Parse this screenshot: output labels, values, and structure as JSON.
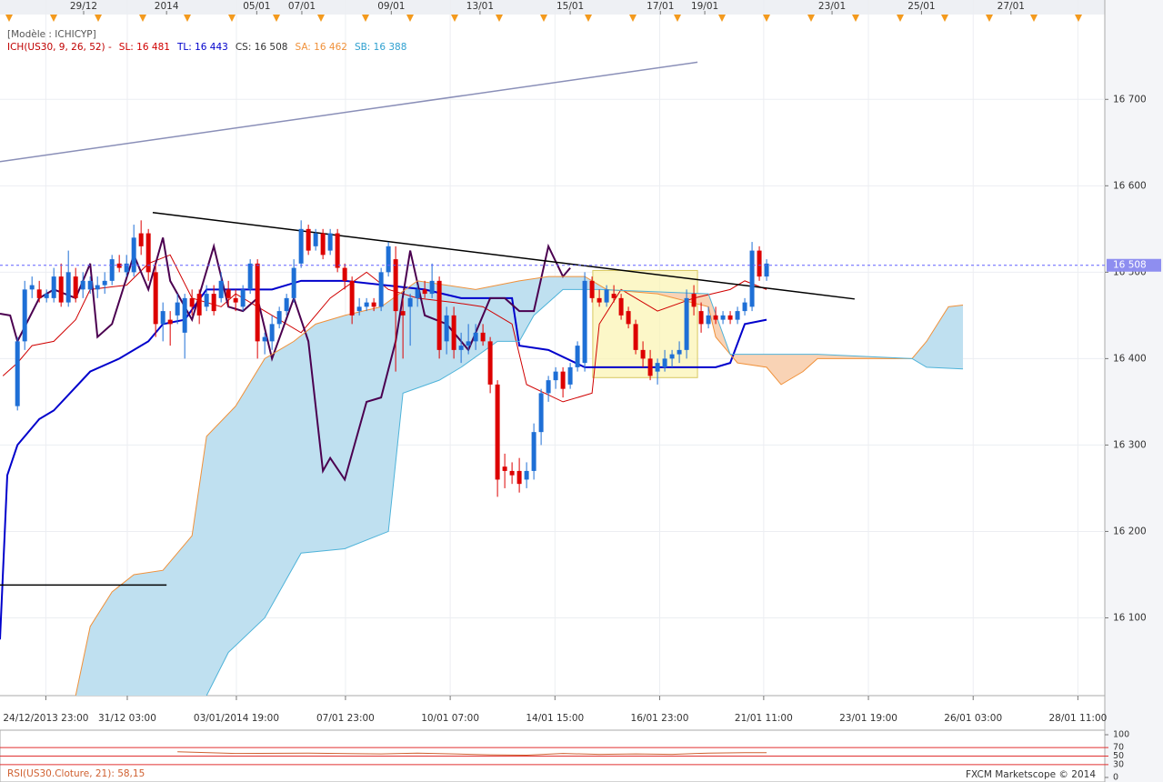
{
  "chart_data": {
    "type": "candlestick",
    "title": "[Modèle : ICHICYP]",
    "legend": [
      {
        "text": "ICH(US30, 9, 26, 52) -",
        "color": "#c00000"
      },
      {
        "text": "SL: 16 481",
        "color": "#d00000"
      },
      {
        "text": "TL: 16 443",
        "color": "#0000cc"
      },
      {
        "text": "CS: 16 508",
        "color": "#333333"
      },
      {
        "text": "SA: 16 462",
        "color": "#f0913a"
      },
      {
        "text": "SB: 16 388",
        "color": "#2fa0d0"
      }
    ],
    "up_color": "#1e6fd6",
    "down_color": "#dd0000",
    "grid": true,
    "xlim": [
      -2.4,
      149.5
    ],
    "ylim": [
      16010,
      16815
    ],
    "yticks": [
      {
        "value": 16100,
        "label": "16 100"
      },
      {
        "value": 16200,
        "label": "16 200"
      },
      {
        "value": 16300,
        "label": "16 300"
      },
      {
        "value": 16400,
        "label": "16 400"
      },
      {
        "value": 16500,
        "label": "16 500"
      },
      {
        "value": 16600,
        "label": "16 600"
      },
      {
        "value": 16700,
        "label": "16 700"
      }
    ],
    "xticks": [
      {
        "value": 3.9,
        "label": "24/12/2013 23:00"
      },
      {
        "value": 15.1,
        "label": "31/12 03:00"
      },
      {
        "value": 30.1,
        "label": "03/01/2014 19:00"
      },
      {
        "value": 45.1,
        "label": "07/01 23:00"
      },
      {
        "value": 59.5,
        "label": "10/01 07:00"
      },
      {
        "value": 73.9,
        "label": "14/01 15:00"
      },
      {
        "value": 88.3,
        "label": "16/01 23:00"
      },
      {
        "value": 102.6,
        "label": "21/01 11:00"
      },
      {
        "value": 117,
        "label": "23/01 19:00"
      },
      {
        "value": 131.4,
        "label": "26/01 03:00"
      },
      {
        "value": 145.8,
        "label": "28/01 11:00"
      }
    ],
    "x2ticks": [
      {
        "value": 9.1,
        "label": "29/12"
      },
      {
        "value": 20.5,
        "label": "2014"
      },
      {
        "value": 32.9,
        "label": "05/01"
      },
      {
        "value": 39.1,
        "label": "07/01"
      },
      {
        "value": 51.4,
        "label": "09/01"
      },
      {
        "value": 63.6,
        "label": "13/01"
      },
      {
        "value": 76,
        "label": "15/01"
      },
      {
        "value": 88.4,
        "label": "17/01"
      },
      {
        "value": 94.5,
        "label": "19/01"
      },
      {
        "value": 112,
        "label": "23/01"
      },
      {
        "value": 124.3,
        "label": "25/01"
      },
      {
        "value": 136.6,
        "label": "27/01"
      }
    ],
    "ohlc": {
      "open": [
        16345,
        16420,
        16480,
        16480,
        16470,
        16470,
        16495,
        16465,
        16495,
        16480,
        16480,
        16480,
        16485,
        16490,
        16510,
        16500,
        16500,
        16545,
        16545,
        16500,
        16440,
        16445,
        16450,
        16430,
        16470,
        16475,
        16460,
        16475,
        16470,
        16480,
        16470,
        16460,
        16480,
        16510,
        16420,
        16420,
        16440,
        16455,
        16470,
        16510,
        16550,
        16530,
        16545,
        16525,
        16545,
        16505,
        16490,
        16455,
        16460,
        16465,
        16460,
        16500,
        16515,
        16455,
        16460,
        16470,
        16480,
        16475,
        16490,
        16420,
        16450,
        16410,
        16415,
        16420,
        16430,
        16420,
        16370,
        16275,
        16270,
        16270,
        16260,
        16270,
        16315,
        16360,
        16375,
        16385,
        16370,
        16390,
        16395,
        16490,
        16470,
        16465,
        16475,
        16470,
        16455,
        16440,
        16410,
        16400,
        16385,
        16390,
        16400,
        16405,
        16410,
        16475,
        16455,
        16440,
        16450,
        16445,
        16450,
        16445,
        16455,
        16460,
        16525,
        16495
      ],
      "high": [
        16425,
        16490,
        16495,
        16490,
        16480,
        16505,
        16510,
        16525,
        16505,
        16500,
        16495,
        16495,
        16500,
        16520,
        16520,
        16520,
        16555,
        16560,
        16550,
        16510,
        16465,
        16455,
        16475,
        16475,
        16480,
        16480,
        16485,
        16485,
        16500,
        16490,
        16480,
        16485,
        16515,
        16515,
        16430,
        16450,
        16460,
        16475,
        16515,
        16560,
        16555,
        16550,
        16550,
        16550,
        16550,
        16510,
        16495,
        16470,
        16470,
        16470,
        16505,
        16535,
        16530,
        16470,
        16475,
        16485,
        16490,
        16510,
        16495,
        16460,
        16460,
        16430,
        16440,
        16440,
        16440,
        16425,
        16375,
        16290,
        16280,
        16285,
        16280,
        16325,
        16365,
        16380,
        16390,
        16390,
        16395,
        16420,
        16500,
        16495,
        16480,
        16485,
        16485,
        16475,
        16460,
        16445,
        16420,
        16410,
        16400,
        16410,
        16410,
        16420,
        16480,
        16485,
        16465,
        16460,
        16460,
        16455,
        16455,
        16460,
        16470,
        16535,
        16530,
        16515
      ],
      "low": [
        16340,
        16410,
        16470,
        16465,
        16465,
        16465,
        16460,
        16460,
        16465,
        16470,
        16475,
        16470,
        16475,
        16485,
        16500,
        16495,
        16495,
        16520,
        16490,
        16425,
        16420,
        16415,
        16440,
        16400,
        16450,
        16440,
        16455,
        16450,
        16465,
        16460,
        16455,
        16455,
        16475,
        16400,
        16405,
        16410,
        16435,
        16450,
        16465,
        16505,
        16520,
        16525,
        16515,
        16520,
        16500,
        16480,
        16440,
        16450,
        16455,
        16455,
        16455,
        16495,
        16385,
        16400,
        16415,
        16460,
        16470,
        16470,
        16400,
        16405,
        16400,
        16395,
        16405,
        16410,
        16415,
        16360,
        16240,
        16250,
        16255,
        16245,
        16250,
        16260,
        16300,
        16350,
        16365,
        16355,
        16365,
        16385,
        16385,
        16465,
        16460,
        16460,
        16465,
        16445,
        16435,
        16405,
        16390,
        16375,
        16370,
        16385,
        16390,
        16395,
        16400,
        16450,
        16430,
        16435,
        16440,
        16440,
        16440,
        16440,
        16450,
        16455,
        16490,
        16490
      ],
      "close": [
        16420,
        16480,
        16485,
        16470,
        16475,
        16495,
        16465,
        16500,
        16470,
        16490,
        16490,
        16485,
        16490,
        16515,
        16505,
        16510,
        16540,
        16530,
        16500,
        16440,
        16455,
        16440,
        16465,
        16470,
        16460,
        16450,
        16475,
        16455,
        16490,
        16470,
        16465,
        16480,
        16510,
        16420,
        16425,
        16440,
        16455,
        16470,
        16505,
        16550,
        16525,
        16545,
        16520,
        16545,
        16505,
        16490,
        16450,
        16460,
        16465,
        16460,
        16500,
        16530,
        16455,
        16450,
        16470,
        16480,
        16475,
        16490,
        16410,
        16450,
        16410,
        16415,
        16420,
        16430,
        16420,
        16370,
        16260,
        16270,
        16265,
        16255,
        16270,
        16315,
        16360,
        16375,
        16385,
        16365,
        16390,
        16415,
        16490,
        16470,
        16465,
        16480,
        16470,
        16450,
        16440,
        16410,
        16400,
        16380,
        16395,
        16400,
        16405,
        16410,
        16470,
        16460,
        16440,
        16450,
        16445,
        16450,
        16445,
        16455,
        16465,
        16525,
        16495,
        16510
      ]
    },
    "series": [
      {
        "color": "#d00000",
        "width": 1,
        "x": [
          -2,
          0,
          2,
          5,
          8,
          10,
          15,
          18,
          21,
          24,
          28,
          30,
          35,
          39,
          43,
          48,
          51,
          55,
          60,
          64,
          68,
          70,
          75,
          79,
          80,
          83,
          88,
          93,
          98,
          100,
          103
        ],
        "values": [
          16380,
          16395,
          16415,
          16420,
          16445,
          16480,
          16485,
          16510,
          16520,
          16470,
          16460,
          16475,
          16450,
          16430,
          16470,
          16500,
          16480,
          16470,
          16465,
          16460,
          16440,
          16370,
          16350,
          16360,
          16440,
          16480,
          16455,
          16470,
          16480,
          16490,
          16480
        ]
      },
      {
        "color": "#0000cc",
        "width": 2,
        "x": [
          -2.4,
          -1.4,
          0,
          3,
          5,
          10,
          14,
          18,
          20,
          23,
          26,
          35,
          39,
          45,
          56,
          61,
          68,
          69,
          73,
          78,
          85,
          96,
          98,
          100,
          103
        ],
        "values": [
          16075,
          16265,
          16300,
          16330,
          16340,
          16385,
          16400,
          16420,
          16440,
          16445,
          16480,
          16480,
          16490,
          16490,
          16480,
          16470,
          16470,
          16415,
          16410,
          16390,
          16390,
          16390,
          16395,
          16440,
          16445
        ]
      },
      {
        "color": "#4b0050",
        "width": 2,
        "x": [
          -2.4,
          -1,
          0,
          3,
          5,
          8,
          10,
          11,
          13,
          16,
          18,
          20,
          21,
          24,
          27,
          29,
          31,
          33,
          35,
          38,
          40,
          42,
          43,
          45,
          48,
          50,
          52,
          54,
          56,
          59,
          62,
          65,
          67,
          69,
          71,
          73,
          75,
          76
        ],
        "values": [
          16452,
          16450,
          16420,
          16470,
          16480,
          16470,
          16510,
          16425,
          16440,
          16520,
          16480,
          16540,
          16490,
          16445,
          16530,
          16460,
          16455,
          16470,
          16400,
          16470,
          16420,
          16270,
          16285,
          16260,
          16350,
          16355,
          16420,
          16525,
          16450,
          16440,
          16410,
          16470,
          16470,
          16455,
          16455,
          16530,
          16495,
          16505
        ]
      },
      {
        "color": "#f0913a",
        "width": 1,
        "cloud": "a",
        "x": [
          8,
          10,
          13,
          16,
          20,
          24,
          26,
          30,
          34,
          38,
          41,
          45,
          50,
          55,
          63,
          69,
          73,
          78,
          81,
          88,
          95,
          96,
          99,
          103,
          105,
          108,
          110,
          123,
          125,
          128,
          130
        ],
        "values": [
          16010,
          16090,
          16130,
          16150,
          16155,
          16195,
          16310,
          16345,
          16400,
          16420,
          16440,
          16450,
          16460,
          16490,
          16480,
          16490,
          16495,
          16495,
          16480,
          16475,
          16460,
          16425,
          16395,
          16390,
          16370,
          16385,
          16400,
          16400,
          16420,
          16460,
          16462
        ]
      },
      {
        "color": "#4fb3d9",
        "width": 1,
        "cloud": "b",
        "x": [
          26,
          29,
          34,
          39,
          45,
          51,
          53,
          58,
          61,
          66,
          69,
          71,
          75,
          80,
          95,
          98,
          110,
          123,
          125,
          130
        ],
        "values": [
          16010,
          16060,
          16100,
          16175,
          16180,
          16200,
          16360,
          16375,
          16390,
          16420,
          16420,
          16450,
          16480,
          16480,
          16475,
          16405,
          16405,
          16400,
          16390,
          16388
        ]
      }
    ],
    "cloud_colors": {
      "above": "#bfe0f0",
      "below": "#f9d3b5"
    },
    "drawings": [
      {
        "color": "#000000",
        "x": [
          18.6,
          115.1
        ],
        "values": [
          16569,
          16469
        ]
      },
      {
        "color": "#8a8fb8",
        "x": [
          -2.4,
          93.5
        ],
        "values": [
          16628,
          16743
        ]
      },
      {
        "color": "#000000",
        "x": [
          -2.4,
          20.5
        ],
        "values": [
          16138,
          16138
        ]
      }
    ],
    "highlight": {
      "x": [
        79.1,
        93.5
      ],
      "values": [
        16378,
        16502
      ],
      "color": "#fbf4b0"
    },
    "last_price": {
      "value": 16508,
      "label": "16 508",
      "color": "#8e8ef0"
    },
    "rsi": {
      "label": "RSI(US30.Cloture, 21): 58,15",
      "color": "#d06030",
      "level_color": "#e03030",
      "ylim": [
        0,
        100
      ],
      "yticks": [
        0,
        30,
        50,
        70,
        100
      ],
      "x": [
        22,
        30,
        40,
        50,
        55,
        60,
        65,
        70,
        75,
        80,
        85,
        90,
        95,
        100,
        103
      ],
      "values": [
        60,
        56,
        57,
        55,
        57,
        55,
        53,
        52,
        56,
        54,
        55,
        54,
        57,
        58,
        58
      ]
    },
    "footer": "FXCM Marketscope © 2014"
  }
}
